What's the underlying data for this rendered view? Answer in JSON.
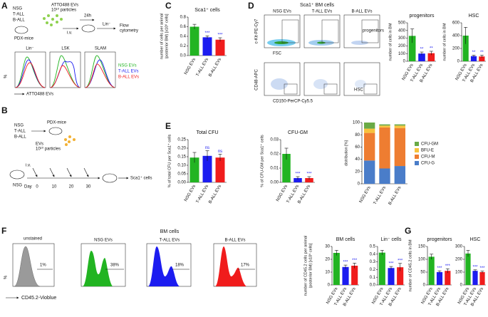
{
  "panel_labels": [
    "A",
    "B",
    "C",
    "D",
    "E",
    "F",
    "G"
  ],
  "A": {
    "groups": [
      "NSG",
      "T-ALL",
      "B-ALL"
    ],
    "evs": "ATTO488 EVs",
    "particles": "10¹⁰ particles",
    "pdx": "PDX-mice",
    "iv": "i.v.",
    "time": "24h",
    "sort": "Lin⁻",
    "readout": [
      "Flow",
      "cytometry"
    ],
    "hist_titles": [
      "Lin⁻",
      "LSK",
      "SLAM"
    ],
    "legend": [
      "NSG EVs",
      "T-ALL EVs",
      "B-ALL EVs"
    ],
    "x_label": "ATTO488 EVs",
    "y_label": "%"
  },
  "B": {
    "groups": [
      "NSG",
      "T-ALL",
      "B-ALL"
    ],
    "pdx": "PDX-mice",
    "evs": "EVs",
    "particles": "10¹⁰ particles",
    "iv": "i.v.",
    "day": "Day",
    "days": [
      "0",
      "10",
      "20",
      "30"
    ],
    "recipient": "NSG",
    "readout": "Sca1⁺ cells"
  },
  "D": {
    "title": "Sca1⁺ BM cells",
    "columns": [
      "NSG EVs",
      "T-ALL EVs",
      "B-ALL EVs"
    ],
    "y_top": "c-Kit-PE-Cy7",
    "x_top": "FSC",
    "y_bottom": "CD48-APC",
    "x_bottom": "CD150-PerCP-Cy5.5",
    "gate_top": "progenitors",
    "gate_bottom": "HSC"
  },
  "F": {
    "group_title": "BM cells",
    "titles": [
      "unstained",
      "NSG EVs",
      "T-ALL EVs",
      "B-ALL EVs"
    ],
    "percents": [
      "1%",
      "38%",
      "18%",
      "17%"
    ],
    "x_label": "CD45.2-Vioblue",
    "y_label": "%"
  },
  "chart_data": [
    {
      "type": "bar",
      "title": "Sca1⁺ cells",
      "y_label": [
        "number of cells per animal",
        "(posterior BM) [x10⁶ cells]"
      ],
      "categories": [
        "NSG EVs",
        "T-ALL EVs",
        "B-ALL EVs"
      ],
      "values": [
        0.6,
        0.38,
        0.33
      ],
      "errors": [
        0.05,
        0.03,
        0.04
      ],
      "colors": [
        "#22b422",
        "#1c1cf0",
        "#f01c1c"
      ],
      "annotations": [
        null,
        "***",
        "***"
      ],
      "annotation_color": "#1c1cf0",
      "ylim": [
        0,
        0.8
      ],
      "yticks": [
        {
          "value": 0,
          "label": "0.0"
        },
        0.2,
        0.4,
        0.6,
        0.8
      ]
    },
    {
      "type": "bar",
      "title": "progenitors",
      "y_label": [
        "number of cells in BM"
      ],
      "categories": [
        "NSG EVs",
        "T-ALL EVs",
        "B-ALL EVs"
      ],
      "values": [
        330,
        100,
        105
      ],
      "errors": [
        90,
        20,
        25
      ],
      "colors": [
        "#22b422",
        "#1c1cf0",
        "#f01c1c"
      ],
      "annotations": [
        null,
        "**",
        "**"
      ],
      "annotation_color": "#1c1cf0",
      "ylim": [
        0,
        500
      ],
      "yticks": [
        0,
        100,
        200,
        300,
        400,
        500
      ]
    },
    {
      "type": "bar",
      "title": "HSC",
      "y_label": [
        "number of cells in BM"
      ],
      "categories": [
        "NSG EVs",
        "T-ALL EVs",
        "B-ALL EVs"
      ],
      "values": [
        400,
        80,
        75
      ],
      "errors": [
        130,
        15,
        20
      ],
      "colors": [
        "#22b422",
        "#1c1cf0",
        "#f01c1c"
      ],
      "annotations": [
        null,
        "**",
        "**"
      ],
      "annotation_color": "#1c1cf0",
      "ylim": [
        0,
        600
      ],
      "yticks": [
        0,
        200,
        400,
        600
      ]
    },
    {
      "type": "bar",
      "title": "Total CFU",
      "y_label": [
        "% of total CFU per Sca1⁺ cells"
      ],
      "categories": [
        "NSG EVs",
        "T-ALL EVs",
        "B-ALL EVs"
      ],
      "values": [
        0.145,
        0.155,
        0.145
      ],
      "errors": [
        0.03,
        0.03,
        0.02
      ],
      "colors": [
        "#22b422",
        "#1c1cf0",
        "#f01c1c"
      ],
      "annotations": [
        null,
        "ns",
        "ns"
      ],
      "annotation_color": "#1c1cf0",
      "ylim": [
        0,
        0.25
      ],
      "yticks": [
        {
          "value": 0,
          "label": "0.00"
        },
        {
          "value": 0.05,
          "label": "0.05"
        },
        {
          "value": 0.1,
          "label": "0.10"
        },
        {
          "value": 0.15,
          "label": "0.15"
        },
        {
          "value": 0.2,
          "label": "0.20"
        },
        {
          "value": 0.25,
          "label": "0.25"
        }
      ]
    },
    {
      "type": "bar",
      "title": "CFU-GM",
      "y_label": [
        "% of CFU-GM per Sca1⁺ cells"
      ],
      "categories": [
        "NSG EVs",
        "T-ALL EVs",
        "B-ALL EVs"
      ],
      "values": [
        0.02,
        0.003,
        0.003
      ],
      "errors": [
        0.004,
        0.001,
        0.001
      ],
      "colors": [
        "#22b422",
        "#1c1cf0",
        "#f01c1c"
      ],
      "annotations": [
        null,
        "***",
        "***"
      ],
      "annotation_color": "#1c1cf0",
      "ylim": [
        0,
        0.03
      ],
      "yticks": [
        {
          "value": 0,
          "label": "0.00"
        },
        0.01,
        0.02,
        0.03
      ]
    },
    {
      "type": "stacked_bar",
      "y_label": [
        "distribution [%]"
      ],
      "categories": [
        "NSG EVs",
        "T-ALL EVs",
        "B-ALL EVs"
      ],
      "series": [
        {
          "name": "CFU-G",
          "color": "#4a7dc9",
          "values": [
            38,
            25,
            29
          ]
        },
        {
          "name": "CFU-M",
          "color": "#ee7d31",
          "values": [
            45,
            67,
            62
          ]
        },
        {
          "name": "BFU-E",
          "color": "#f7c23c",
          "values": [
            7,
            3,
            4
          ]
        },
        {
          "name": "CFU-GM",
          "color": "#6aaa46",
          "values": [
            10,
            2,
            2
          ]
        }
      ],
      "ylim": [
        0,
        100
      ],
      "yticks": [
        0,
        20,
        40,
        60,
        80,
        100
      ]
    },
    {
      "type": "bar",
      "title": "BM cells",
      "y_label": [
        "number of CD45.2 cells per animal",
        "(posterior BM) [x10⁶ cells]"
      ],
      "categories": [
        "NSG EVs",
        "T-ALL EVs",
        "B-ALL EVs"
      ],
      "values": [
        25,
        14,
        15
      ],
      "errors": [
        2,
        1.5,
        2
      ],
      "colors": [
        "#22b422",
        "#1c1cf0",
        "#f01c1c"
      ],
      "annotations": [
        null,
        "***",
        "***"
      ],
      "annotation_color": "#1c1cf0",
      "ylim": [
        0,
        30
      ],
      "yticks": [
        0,
        10,
        20,
        30
      ]
    },
    {
      "type": "bar",
      "title": "Lin⁻ cells",
      "categories": [
        "NSG EVs",
        "T-ALL EVs",
        "B-ALL EVs"
      ],
      "values": [
        0.42,
        0.22,
        0.23
      ],
      "errors": [
        0.03,
        0.02,
        0.05
      ],
      "colors": [
        "#22b422",
        "#1c1cf0",
        "#f01c1c"
      ],
      "annotations": [
        null,
        "***",
        "***"
      ],
      "annotation_color": "#1c1cf0",
      "ylim": [
        0,
        0.5
      ],
      "yticks": [
        {
          "value": 0,
          "label": "0.0"
        },
        0.1,
        0.2,
        0.3,
        0.4,
        0.5
      ]
    },
    {
      "type": "bar",
      "title": "progenitors",
      "y_label": [
        "number of CD45.2 cells in BM"
      ],
      "categories": [
        "NSG EVs",
        "T-ALL EVs",
        "B-ALL EVs"
      ],
      "values": [
        110,
        50,
        55
      ],
      "errors": [
        10,
        5,
        8
      ],
      "colors": [
        "#22b422",
        "#1c1cf0",
        "#f01c1c"
      ],
      "annotations": [
        null,
        "***",
        "***"
      ],
      "annotation_color": "#1c1cf0",
      "ylim": [
        0,
        150
      ],
      "yticks": [
        0,
        50,
        100,
        150
      ]
    },
    {
      "type": "bar",
      "title": "HSC",
      "categories": [
        "NSG EVs",
        "T-ALL EVs",
        "B-ALL EVs"
      ],
      "values": [
        245,
        110,
        100
      ],
      "errors": [
        25,
        8,
        8
      ],
      "colors": [
        "#22b422",
        "#1c1cf0",
        "#f01c1c"
      ],
      "annotations": [
        null,
        "***",
        "***"
      ],
      "annotation_color": "#1c1cf0",
      "ylim": [
        0,
        300
      ],
      "yticks": [
        0,
        100,
        200,
        300
      ]
    }
  ]
}
